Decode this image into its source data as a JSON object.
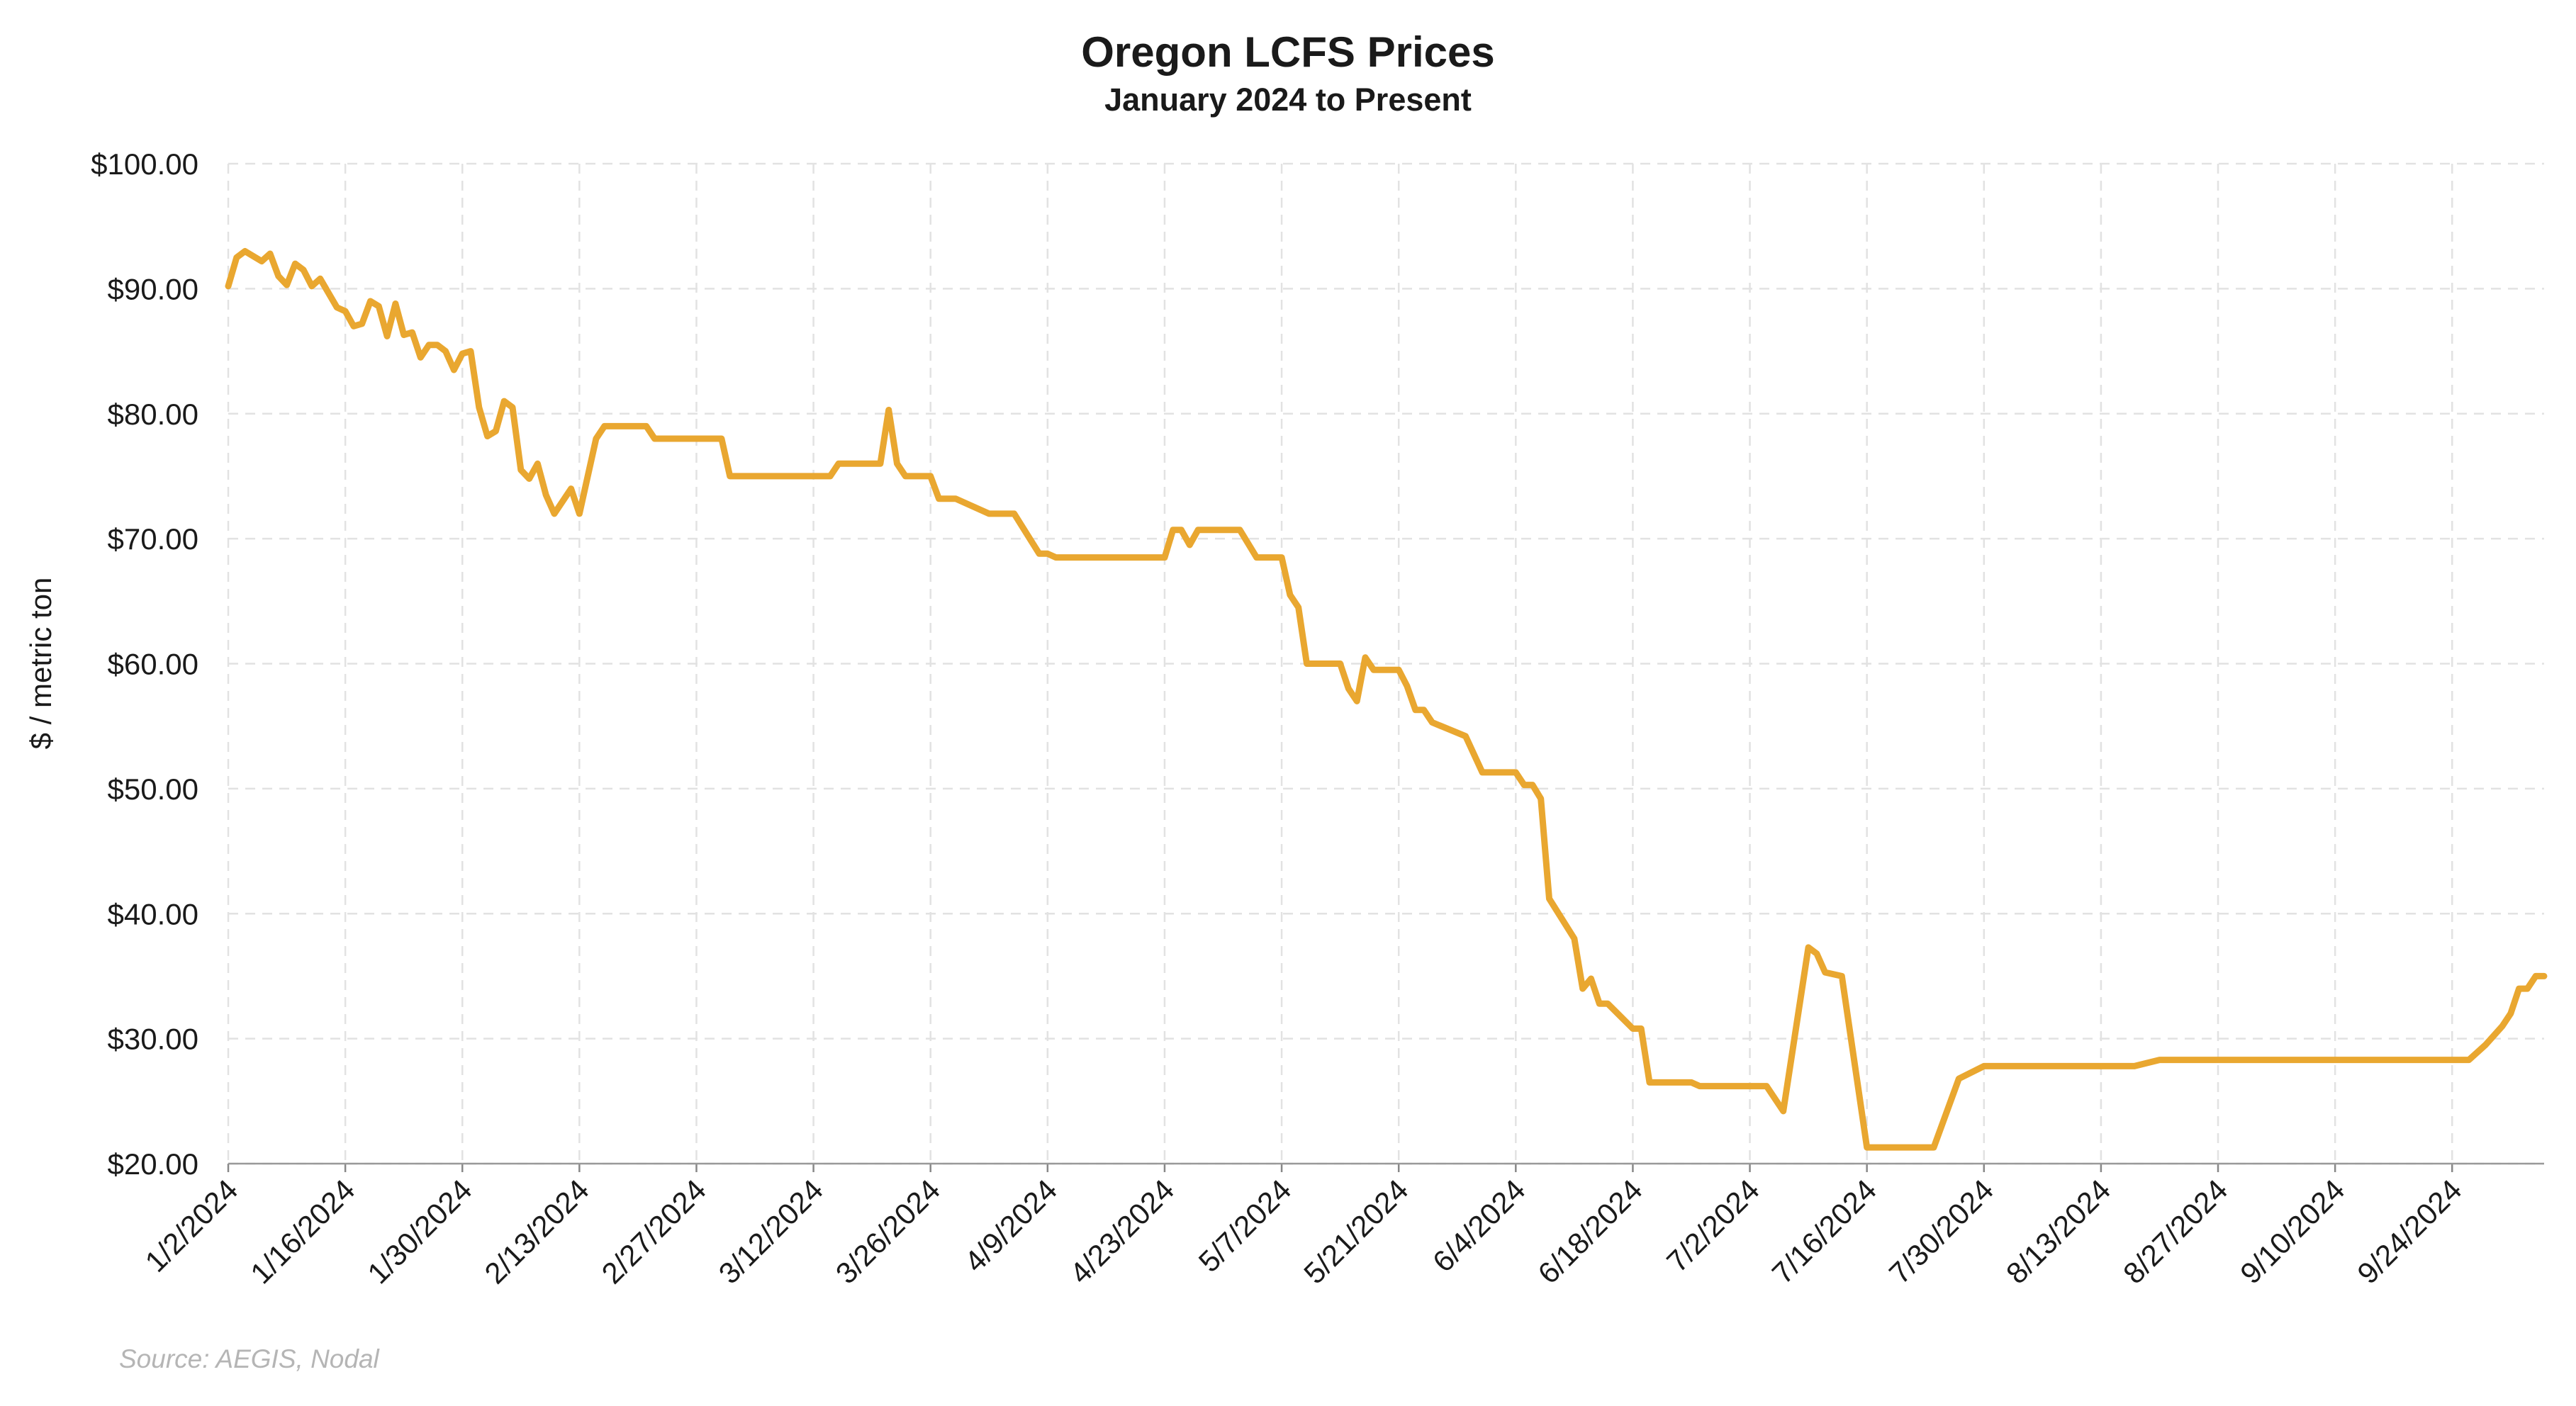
{
  "chart_data": {
    "type": "line",
    "title": "Oregon LCFS Prices",
    "subtitle": "January 2024 to Present",
    "y_label": "$ / metric ton",
    "source": "Source: AEGIS, Nodal",
    "color": "#E9A730",
    "grid": true,
    "x": [
      "1/2/2024",
      "1/3/2024",
      "1/4/2024",
      "1/6/2024",
      "1/7/2024",
      "1/8/2024",
      "1/9/2024",
      "1/10/2024",
      "1/11/2024",
      "1/12/2024",
      "1/13/2024",
      "1/15/2024",
      "1/16/2024",
      "1/17/2024",
      "1/18/2024",
      "1/19/2024",
      "1/20/2024",
      "1/21/2024",
      "1/22/2024",
      "1/23/2024",
      "1/24/2024",
      "1/25/2024",
      "1/26/2024",
      "1/27/2024",
      "1/28/2024",
      "1/29/2024",
      "1/30/2024",
      "1/31/2024",
      "2/1/2024",
      "2/2/2024",
      "2/3/2024",
      "2/4/2024",
      "2/5/2024",
      "2/6/2024",
      "2/7/2024",
      "2/8/2024",
      "2/9/2024",
      "2/10/2024",
      "2/11/2024",
      "2/12/2024",
      "2/13/2024",
      "2/15/2024",
      "2/16/2024",
      "2/21/2024",
      "2/22/2024",
      "3/1/2024",
      "3/2/2024",
      "3/14/2024",
      "3/15/2024",
      "3/20/2024",
      "3/21/2024",
      "3/22/2024",
      "3/23/2024",
      "3/26/2024",
      "3/27/2024",
      "3/29/2024",
      "4/2/2024",
      "4/5/2024",
      "4/8/2024",
      "4/9/2024",
      "4/10/2024",
      "4/23/2024",
      "4/24/2024",
      "4/25/2024",
      "4/26/2024",
      "4/27/2024",
      "5/2/2024",
      "5/4/2024",
      "5/7/2024",
      "5/8/2024",
      "5/9/2024",
      "5/10/2024",
      "5/14/2024",
      "5/15/2024",
      "5/16/2024",
      "5/17/2024",
      "5/18/2024",
      "5/21/2024",
      "5/22/2024",
      "5/23/2024",
      "5/24/2024",
      "5/25/2024",
      "5/29/2024",
      "5/31/2024",
      "6/4/2024",
      "6/5/2024",
      "6/6/2024",
      "6/7/2024",
      "6/8/2024",
      "6/11/2024",
      "6/12/2024",
      "6/13/2024",
      "6/14/2024",
      "6/15/2024",
      "6/18/2024",
      "6/19/2024",
      "6/20/2024",
      "6/25/2024",
      "6/26/2024",
      "7/4/2024",
      "7/6/2024",
      "7/9/2024",
      "7/10/2024",
      "7/11/2024",
      "7/13/2024",
      "7/16/2024",
      "7/24/2024",
      "7/27/2024",
      "7/30/2024",
      "8/17/2024",
      "8/20/2024",
      "9/26/2024",
      "9/28/2024",
      "9/30/2024",
      "10/1/2024",
      "10/2/2024",
      "10/3/2024",
      "10/4/2024",
      "10/5/2024"
    ],
    "values": [
      90.2,
      92.5,
      93.0,
      92.2,
      92.8,
      91.0,
      90.3,
      92.0,
      91.5,
      90.2,
      90.8,
      88.5,
      88.2,
      87.0,
      87.2,
      89.0,
      88.6,
      86.2,
      88.8,
      86.3,
      86.5,
      84.5,
      85.5,
      85.5,
      85.0,
      83.5,
      84.8,
      85.0,
      80.5,
      78.2,
      78.6,
      81.0,
      80.5,
      75.5,
      74.8,
      76.0,
      73.5,
      72.0,
      73.0,
      74.0,
      72.0,
      78.0,
      79.0,
      79.0,
      78.0,
      78.0,
      75.0,
      75.0,
      76.0,
      76.0,
      80.3,
      76.0,
      75.0,
      75.0,
      73.2,
      73.2,
      72.0,
      72.0,
      68.8,
      68.8,
      68.5,
      68.5,
      70.7,
      70.7,
      69.5,
      70.7,
      70.7,
      68.5,
      68.5,
      65.5,
      64.5,
      60.0,
      60.0,
      58.0,
      57.0,
      60.5,
      59.5,
      59.5,
      58.2,
      56.3,
      56.3,
      55.3,
      54.2,
      51.3,
      51.3,
      50.3,
      50.3,
      49.2,
      41.2,
      38.0,
      34.0,
      34.8,
      32.8,
      32.8,
      30.8,
      30.8,
      26.5,
      26.5,
      26.2,
      26.2,
      24.2,
      37.3,
      36.8,
      35.3,
      35.0,
      21.3,
      21.3,
      26.8,
      27.8,
      27.8,
      28.3,
      28.3,
      29.5,
      31.0,
      32.0,
      34.0,
      34.0,
      35.0,
      35.0
    ],
    "xlim": [
      "1/2/2024",
      "10/5/2024"
    ],
    "xticks": [
      "1/2/2024",
      "1/16/2024",
      "1/30/2024",
      "2/13/2024",
      "2/27/2024",
      "3/12/2024",
      "3/26/2024",
      "4/9/2024",
      "4/23/2024",
      "5/7/2024",
      "5/21/2024",
      "6/4/2024",
      "6/18/2024",
      "7/2/2024",
      "7/16/2024",
      "7/30/2024",
      "8/13/2024",
      "8/27/2024",
      "9/10/2024",
      "9/24/2024"
    ],
    "ylim": [
      20,
      100
    ],
    "yticks": [
      {
        "value": 20,
        "label": "$20.00"
      },
      {
        "value": 30,
        "label": "$30.00"
      },
      {
        "value": 40,
        "label": "$40.00"
      },
      {
        "value": 50,
        "label": "$50.00"
      },
      {
        "value": 60,
        "label": "$60.00"
      },
      {
        "value": 70,
        "label": "$70.00"
      },
      {
        "value": 80,
        "label": "$80.00"
      },
      {
        "value": 90,
        "label": "$90.00"
      },
      {
        "value": 100,
        "label": "$100.00"
      }
    ]
  }
}
